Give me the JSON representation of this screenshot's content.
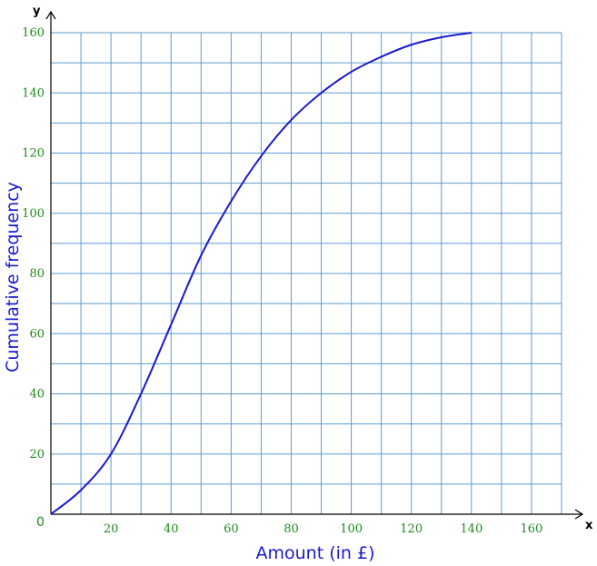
{
  "chart_data": {
    "type": "line",
    "title": "",
    "xlabel": "Amount (in £)",
    "ylabel": "Cumulative frequency",
    "x_axis_letter": "x",
    "y_axis_letter": "y",
    "origin_label": "0",
    "xlim": [
      0,
      170
    ],
    "ylim": [
      0,
      160
    ],
    "x_grid_step": 10,
    "y_grid_step": 10,
    "x_ticks": [
      "20",
      "40",
      "60",
      "80",
      "100",
      "120",
      "140",
      "160"
    ],
    "y_ticks": [
      "20",
      "40",
      "60",
      "80",
      "100",
      "120",
      "140",
      "160"
    ],
    "grid": true,
    "colors": {
      "curve": "#1a1ad0",
      "grid": "#5b9bd5",
      "ticks": "#1f8a1f",
      "axis_title": "#1a1ad0"
    },
    "series": [
      {
        "x": [
          0,
          10,
          20,
          30,
          40,
          50,
          60,
          70,
          80,
          90,
          100,
          110,
          120,
          130,
          140
        ],
        "y": [
          0,
          8,
          20,
          40,
          63,
          86,
          104,
          119,
          131,
          140,
          147,
          152,
          156,
          158.5,
          160
        ]
      }
    ]
  }
}
